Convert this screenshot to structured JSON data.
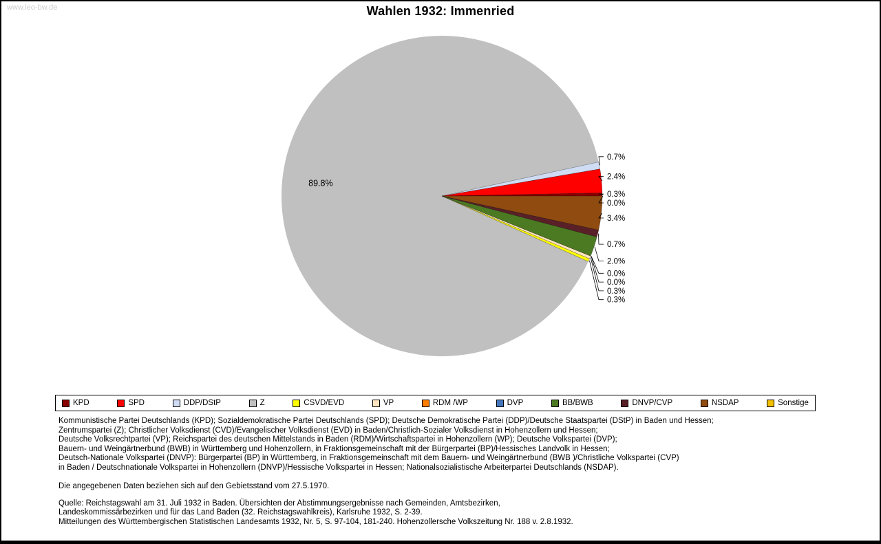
{
  "watermark": "www.leo-bw.de",
  "title": "Wahlen 1932: Immenried",
  "chart_data": {
    "type": "pie",
    "title": "Wahlen 1932: Immenried",
    "unit": "%",
    "legend_position": "bottom",
    "label_inside": "89.8%",
    "series": [
      {
        "name": "KPD",
        "value": 0.3,
        "color": "#8b0000"
      },
      {
        "name": "SPD",
        "value": 2.4,
        "color": "#ff0000"
      },
      {
        "name": "DDP/DStP",
        "value": 0.7,
        "color": "#cfdcf4"
      },
      {
        "name": "Z",
        "value": 89.8,
        "color": "#c0c0c0"
      },
      {
        "name": "CSVD/EVD",
        "value": 0.3,
        "color": "#ffff00"
      },
      {
        "name": "VP",
        "value": 0.3,
        "color": "#ffe5c0"
      },
      {
        "name": "RDM /WP",
        "value": 0.0,
        "color": "#ff7e00"
      },
      {
        "name": "DVP",
        "value": 0.0,
        "color": "#4576bc"
      },
      {
        "name": "BB/BWB",
        "value": 2.0,
        "color": "#4c7a22"
      },
      {
        "name": "DNVP/CVP",
        "value": 0.7,
        "color": "#5a2028"
      },
      {
        "name": "NSDAP",
        "value": 3.4,
        "color": "#8f4b10"
      },
      {
        "name": "Sonstige",
        "value": 0.0,
        "color": "#f3c000"
      }
    ],
    "callout_labels_top_to_bottom": [
      "0.7%",
      "2.4%",
      "0.3%",
      "0.0%",
      "3.4%",
      "0.7%",
      "2.0%",
      "0.0%",
      "0.0%",
      "0.3%",
      "0.3%"
    ]
  },
  "footer": {
    "party_lines": [
      "Kommunistische Partei Deutschlands (KPD); Sozialdemokratische Partei Deutschlands (SPD); Deutsche Demokratische Partei (DDP)/Deutsche Staatspartei (DStP) in Baden und Hessen;",
      "Zentrumspartei (Z); Christlicher Volksdienst (CVD)/Evangelischer Volksdienst (EVD) in Baden/Christlich-Sozialer Volksdienst in Hohenzollern und Hessen;",
      "Deutsche Volksrechtpartei (VP); Reichspartei des deutschen Mittelstands in Baden (RDM)/Wirtschaftspartei in Hohenzollern (WP); Deutsche Volkspartei (DVP);",
      "Bauern- und Weingärtnerbund (BWB) in Württemberg und Hohenzollern, in Fraktionsgemeinschaft mit der Bürgerpartei (BP)/Hessisches Landvolk in Hessen;",
      "Deutsch-Nationale Volkspartei (DNVP): Bürgerpartei (BP) in Württemberg, in Fraktionsgemeinschaft mit dem Bauern- und Weingärtnerbund (BWB )/Christliche Volkspartei (CVP)",
      "in Baden / Deutschnationale Volkspartei in Hohenzollern (DNVP)/Hessische Volkspartei in Hessen; Nationalsozialistische Arbeiterpartei Deutschlands (NSDAP)."
    ],
    "note": "Die angegebenen Daten beziehen sich auf den Gebietsstand vom 27.5.1970.",
    "source_lines": [
      "Quelle: Reichstagswahl am 31. Juli 1932 in Baden. Übersichten der Abstimmungsergebnisse nach Gemeinden, Amtsbezirken,",
      "Landeskommissärbezirken und für das Land Baden (32. Reichstagswahlkreis), Karlsruhe 1932, S. 2-39.",
      "Mitteilungen des Württembergischen Statistischen Landesamts 1932, Nr. 5, S. 97-104, 181-240. Hohenzollersche Volkszeitung Nr. 188 v. 2.8.1932."
    ]
  }
}
